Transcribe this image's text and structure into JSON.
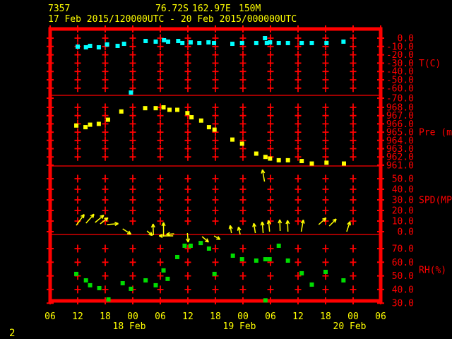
{
  "header": {
    "station_id": "7357",
    "lat": "76.72S",
    "lon": "162.97E",
    "elev": "150M",
    "period": "17 Feb 2015/120000UTC - 20 Feb 2015/000000UTC"
  },
  "footer": {
    "page": "2"
  },
  "colors": {
    "background": "#000000",
    "grid": "#ff0000",
    "axis_text": "#ff0000",
    "time_text": "#ffff00",
    "temp": "#00ffff",
    "pressure": "#ffff00",
    "wind": "#ffff00",
    "rh": "#00dd00"
  },
  "chart_data": {
    "type": "scatter",
    "title": "Station meteogram 7357, 17 Feb 2015/120000UTC - 20 Feb 2015/000000UTC",
    "x_axis": {
      "hours_span": 72,
      "tick_labels": [
        "06",
        "12",
        "18",
        "00",
        "06",
        "12",
        "18",
        "00",
        "06",
        "12",
        "18",
        "00",
        "06"
      ],
      "date_labels": [
        "18 Feb",
        "19 Feb",
        "20 Feb"
      ],
      "grid": true
    },
    "panels": [
      {
        "name": "temperature",
        "unit_label": "T(C)",
        "tick_labels": [
          "0.0",
          "-10.0",
          "-20.0",
          "-30.0",
          "-40.0",
          "-50.0",
          "-60.0",
          "-70.0"
        ],
        "ylim": [
          0,
          -70
        ],
        "points": [
          [
            6,
            -10.2
          ],
          [
            7.8,
            -11
          ],
          [
            8.7,
            -9.3
          ],
          [
            10.6,
            -11
          ],
          [
            12.4,
            -7.6
          ],
          [
            14.7,
            -9.3
          ],
          [
            16.1,
            -6.8
          ],
          [
            17.6,
            -65.3
          ],
          [
            20.8,
            -3.4
          ],
          [
            23,
            -4.2
          ],
          [
            24.8,
            -2.5
          ],
          [
            25.7,
            -4.2
          ],
          [
            27.9,
            -3.4
          ],
          [
            28.8,
            -5.9
          ],
          [
            30.6,
            -5.1
          ],
          [
            32.5,
            -5.9
          ],
          [
            34.5,
            -5.1
          ],
          [
            35.7,
            -5.9
          ],
          [
            39.7,
            -6.8
          ],
          [
            41.8,
            -5.9
          ],
          [
            44.9,
            -5.9
          ],
          [
            46.8,
            0
          ],
          [
            47.2,
            -5.9
          ],
          [
            47.9,
            -5.1
          ],
          [
            49.8,
            -5.9
          ],
          [
            51.8,
            -5.9
          ],
          [
            54.8,
            -5.9
          ],
          [
            57,
            -5.9
          ],
          [
            60.2,
            -5.9
          ],
          [
            63.9,
            -4.2
          ]
        ]
      },
      {
        "name": "pressure",
        "unit_label": "Pre (mb)",
        "tick_labels": [
          "968.0",
          "967.0",
          "966.0",
          "965.0",
          "964.0",
          "963.0",
          "962.0",
          "961.0"
        ],
        "ylim": [
          968,
          961
        ],
        "points": [
          [
            5.7,
            965.8
          ],
          [
            7.7,
            965.6
          ],
          [
            8.7,
            965.9
          ],
          [
            10.6,
            966
          ],
          [
            12.6,
            966.5
          ],
          [
            15.5,
            967.5
          ],
          [
            20.7,
            967.9
          ],
          [
            23,
            967.9
          ],
          [
            24.7,
            968
          ],
          [
            26,
            967.7
          ],
          [
            27.7,
            967.7
          ],
          [
            29.9,
            967.3
          ],
          [
            30.8,
            966.8
          ],
          [
            32.9,
            966.4
          ],
          [
            34.6,
            965.6
          ],
          [
            35.8,
            965.3
          ],
          [
            39.7,
            964.1
          ],
          [
            41.8,
            963.6
          ],
          [
            44.9,
            962.4
          ],
          [
            46.9,
            962
          ],
          [
            47.9,
            961.8
          ],
          [
            49.8,
            961.6
          ],
          [
            51.8,
            961.6
          ],
          [
            54.8,
            961.5
          ],
          [
            57,
            961.2
          ],
          [
            60.2,
            961.3
          ],
          [
            64,
            961.2
          ]
        ]
      },
      {
        "name": "wind-speed",
        "unit_label": "SPD(MPS)",
        "tick_labels": [
          "50.0",
          "40.0",
          "30.0",
          "20.0",
          "10.0",
          "0.0"
        ],
        "ylim": [
          50,
          0
        ],
        "arrows": [
          [
            5.7,
            54,
            19,
            -13
          ],
          [
            7.8,
            48,
            17,
            -16
          ],
          [
            9.8,
            40,
            16,
            -17
          ],
          [
            10.9,
            38,
            14,
            -15
          ],
          [
            12.4,
            5,
            16,
            -14
          ],
          [
            15.8,
            -33,
            14,
            -8
          ],
          [
            21.1,
            -40,
            10,
            -5
          ],
          [
            22.5,
            92,
            16,
            1
          ],
          [
            24.7,
            90,
            20,
            3
          ],
          [
            27,
            185,
            11,
            -1
          ],
          [
            26.8,
            180,
            20,
            2
          ],
          [
            29.9,
            -85,
            13,
            -2
          ],
          [
            33.1,
            -40,
            12,
            3
          ],
          [
            35.7,
            -30,
            10,
            2
          ],
          [
            39.5,
            100,
            11,
            -2
          ],
          [
            41.4,
            103,
            11,
            0
          ],
          [
            44.7,
            99,
            14,
            -2
          ],
          [
            46.4,
            95,
            16,
            -2
          ],
          [
            47.8,
            95,
            16,
            -4
          ],
          [
            50.1,
            92,
            16,
            -5
          ],
          [
            51.8,
            92,
            16,
            -4
          ],
          [
            54.7,
            80,
            17,
            -4
          ],
          [
            58.5,
            42,
            14,
            -14
          ],
          [
            60.8,
            45,
            14,
            -12
          ],
          [
            64.6,
            72,
            15,
            -4
          ],
          [
            46.7,
            100,
            17,
            -75
          ]
        ]
      },
      {
        "name": "relative-humidity",
        "unit_label": "RH(%)",
        "tick_labels": [
          "70.0",
          "60.0",
          "50.0",
          "40.0",
          "30.0"
        ],
        "ylim": [
          70,
          30
        ],
        "points": [
          [
            5.7,
            51.4
          ],
          [
            7.8,
            46.7
          ],
          [
            8.7,
            43.1
          ],
          [
            10.7,
            41
          ],
          [
            12.7,
            32.7
          ],
          [
            15.8,
            44.6
          ],
          [
            17.6,
            40.5
          ],
          [
            20.8,
            46.7
          ],
          [
            23,
            43.1
          ],
          [
            24.7,
            54
          ],
          [
            25.6,
            47.8
          ],
          [
            27.7,
            63.8
          ],
          [
            29.3,
            72.1
          ],
          [
            30.6,
            72.1
          ],
          [
            32.8,
            74.1
          ],
          [
            34.6,
            70
          ],
          [
            35.8,
            51.4
          ],
          [
            39.8,
            64.8
          ],
          [
            41.8,
            62.2
          ],
          [
            44.9,
            61.2
          ],
          [
            46.9,
            62.2
          ],
          [
            47.8,
            62.2
          ],
          [
            49.8,
            72.1
          ],
          [
            51.8,
            61.2
          ],
          [
            54.8,
            51.9
          ],
          [
            57,
            43.6
          ],
          [
            60,
            52.9
          ],
          [
            63.9,
            46.7
          ],
          [
            46.9,
            32
          ]
        ]
      }
    ]
  }
}
